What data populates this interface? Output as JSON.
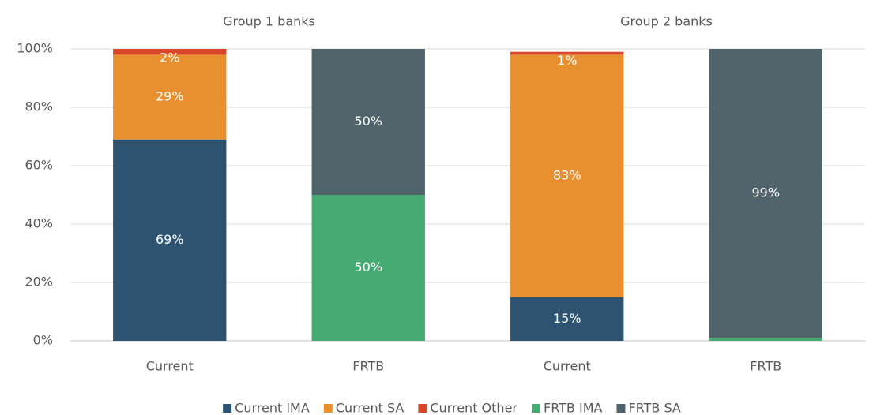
{
  "chart_data": {
    "type": "stacked_bar",
    "groups": [
      "Group 1 banks",
      "Group 2 banks"
    ],
    "categories": [
      "Current",
      "FRTB",
      "Current",
      "FRTB"
    ],
    "series": [
      {
        "name": "Current IMA",
        "color": "#2e5370",
        "values": [
          69,
          null,
          15,
          null
        ],
        "value_labels": [
          "69%",
          null,
          "15%",
          null
        ]
      },
      {
        "name": "Current SA",
        "color": "#e8902f",
        "values": [
          29,
          null,
          83,
          null
        ],
        "value_labels": [
          "29%",
          null,
          "83%",
          null
        ]
      },
      {
        "name": "Current Other",
        "color": "#d9472b",
        "values": [
          2,
          null,
          1,
          null
        ],
        "value_labels": [
          "2%",
          null,
          "1%",
          null
        ]
      },
      {
        "name": "FRTB IMA",
        "color": "#46ab72",
        "values": [
          null,
          50,
          null,
          1
        ],
        "value_labels": [
          null,
          "50%",
          null,
          "1%"
        ]
      },
      {
        "name": "FRTB SA",
        "color": "#52646b",
        "values": [
          null,
          50,
          null,
          99
        ],
        "value_labels": [
          null,
          "50%",
          null,
          "99%"
        ]
      }
    ],
    "ylim": [
      0,
      100
    ],
    "yticks": [
      {
        "value": 0,
        "label": "0%"
      },
      {
        "value": 20,
        "label": "20%"
      },
      {
        "value": 40,
        "label": "40%"
      },
      {
        "value": 60,
        "label": "60%"
      },
      {
        "value": 80,
        "label": "80%"
      },
      {
        "value": 100,
        "label": "100%"
      }
    ],
    "grid": true,
    "legend": "bottom"
  }
}
